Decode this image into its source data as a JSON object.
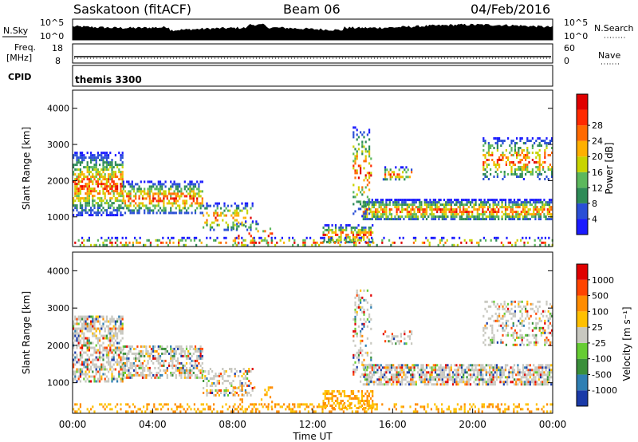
{
  "header": {
    "station": "Saskatoon (fitACF)",
    "beam": "Beam 06",
    "date": "04/Feb/2016"
  },
  "top_panels": {
    "nsky": {
      "label": "N.Sky",
      "ticks_left": [
        "10^5",
        "10^0"
      ],
      "ticks_right": [
        "10^5",
        "10^0"
      ],
      "right_label": "N.Search"
    },
    "freq": {
      "label": "Freq.",
      "unit": "[MHz]",
      "ticks_left": [
        "18",
        "8"
      ],
      "ticks_right": [
        "60",
        "0"
      ],
      "right_label": "Nave"
    },
    "cpid": {
      "label": "CPID",
      "value": "themis 3300"
    }
  },
  "chart_data": [
    {
      "type": "heatmap",
      "panel": "power",
      "ylabel": "Slant Range [km]",
      "yticks": [
        1000,
        2000,
        3000,
        4000
      ],
      "ylim": [
        180,
        4500
      ],
      "xlim_hours": [
        0,
        24
      ],
      "colorbar": {
        "label": "Power [dB]",
        "ticks": [
          "4",
          "8",
          "12",
          "16",
          "20",
          "24",
          "28"
        ],
        "colors": [
          "#1a1aff",
          "#2a4fd6",
          "#2e8b57",
          "#5cb85c",
          "#c8d400",
          "#ffb000",
          "#ff6a00",
          "#ff2a00",
          "#e00000"
        ]
      }
    },
    {
      "type": "heatmap",
      "panel": "velocity",
      "ylabel": "Slant Range [km]",
      "yticks": [
        1000,
        2000,
        3000,
        4000
      ],
      "ylim": [
        180,
        4500
      ],
      "xlim_hours": [
        0,
        24
      ],
      "colorbar": {
        "label": "Velocity [m s⁻¹]",
        "ticks": [
          "1000",
          "500",
          "100",
          "25",
          "-25",
          "-100",
          "-500",
          "-1000"
        ],
        "colors": [
          "#1a3aa8",
          "#2f7fb3",
          "#3a8f3a",
          "#66cc33",
          "#c8c8c0",
          "#ffc000",
          "#ff8c00",
          "#ff4400",
          "#e00000"
        ]
      }
    }
  ],
  "xaxis": {
    "ticks": [
      "00:00",
      "04:00",
      "08:00",
      "12:00",
      "16:00",
      "20:00",
      "00:00"
    ],
    "label": "Time UT"
  }
}
